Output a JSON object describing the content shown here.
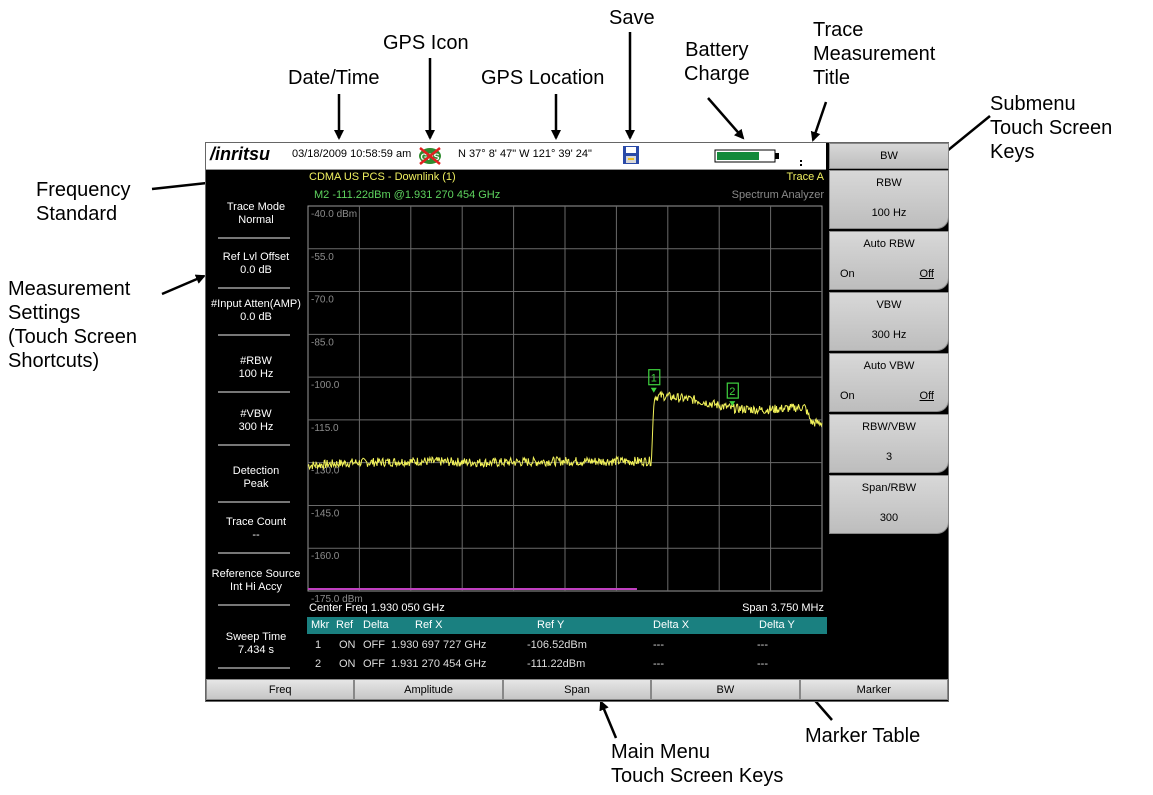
{
  "callouts": {
    "date_time": "Date/Time",
    "gps_icon": "GPS Icon",
    "gps_location": "GPS Location",
    "save": "Save",
    "battery": "Battery\nCharge",
    "trace_title": "Trace\nMeasurement\nTitle",
    "submenu": "Submenu\nTouch Screen\nKeys",
    "freq_standard": "Frequency\nStandard",
    "meas_settings": "Measurement\nSettings\n(Touch Screen\nShortcuts)",
    "marker_table": "Marker Table",
    "main_menu": "Main Menu\nTouch Screen Keys"
  },
  "status": {
    "logo": "/inritsu",
    "datetime": "03/18/2009 10:58:59 am",
    "gps_icon_label": "GPS",
    "gps_location": "N 37° 8' 47\" W 121° 39' 24\""
  },
  "header": {
    "standard": "CDMA US PCS - Downlink (1)",
    "trace": "Trace A",
    "marker_readout": "M2 -111.22dBm @1.931 270 454 GHz",
    "mode": "Spectrum Analyzer"
  },
  "left_panel": [
    {
      "label": "Trace Mode",
      "value": "Normal"
    },
    {
      "label": "Ref Lvl Offset",
      "value": "0.0 dB"
    },
    {
      "label": "#Input Atten(AMP)",
      "value": "0.0 dB"
    },
    {
      "label": "#RBW",
      "value": "100 Hz"
    },
    {
      "label": "#VBW",
      "value": "300 Hz"
    },
    {
      "label": "Detection",
      "value": "Peak"
    },
    {
      "label": "Trace Count",
      "value": "--"
    },
    {
      "label": "Reference Source",
      "value": "Int Hi Accy"
    },
    {
      "label": "Sweep Time",
      "value": "7.434 s"
    }
  ],
  "submenu": {
    "title": "BW",
    "keys": [
      {
        "label": "RBW",
        "value": "100 Hz"
      },
      {
        "label": "Auto RBW",
        "opt1": "On",
        "opt2": "Off"
      },
      {
        "label": "VBW",
        "value": "300 Hz"
      },
      {
        "label": "Auto VBW",
        "opt1": "On",
        "opt2": "Off"
      },
      {
        "label": "RBW/VBW",
        "value": "3"
      },
      {
        "label": "Span/RBW",
        "value": "300"
      }
    ]
  },
  "main_menu": [
    "Freq",
    "Amplitude",
    "Span",
    "BW",
    "Marker"
  ],
  "chart_data": {
    "type": "line",
    "y_tick_labels": [
      "-40.0 dBm",
      "-55.0",
      "-70.0",
      "-85.0",
      "-100.0",
      "-115.0",
      "-130.0",
      "-145.0",
      "-160.0",
      "-175.0 dBm"
    ],
    "ylim": [
      -175,
      -40
    ],
    "xlim": [
      1.928175,
      1.931925
    ],
    "xlabel_left": "Center Freq 1.930 050 GHz",
    "xlabel_right": "Span 3.750 MHz",
    "grid": true,
    "series": [
      {
        "x": [
          1.928175,
          1.9285,
          1.929,
          1.9295,
          1.93,
          1.9305,
          1.93068,
          1.9307,
          1.93075,
          1.931,
          1.93127,
          1.9315,
          1.9318,
          1.93185,
          1.931925
        ],
        "values": [
          -131,
          -130,
          -129.5,
          -130,
          -129.5,
          -129.5,
          -129.5,
          -107,
          -106.5,
          -108,
          -111,
          -111.5,
          -110.5,
          -116,
          -116
        ]
      }
    ],
    "markers": [
      {
        "label": "1",
        "x": 1.930697727,
        "y": -106.52
      },
      {
        "label": "2",
        "x": 1.931270454,
        "y": -111.22
      }
    ]
  },
  "marker_table": {
    "headers": [
      "Mkr",
      "Ref",
      "Delta",
      "Ref X",
      "Ref Y",
      "Delta X",
      "Delta Y"
    ],
    "rows": [
      [
        "1",
        "ON",
        "OFF",
        "1.930 697 727 GHz",
        "-106.52dBm",
        "---",
        "---"
      ],
      [
        "2",
        "ON",
        "OFF",
        "1.931 270 454 GHz",
        "-111.22dBm",
        "---",
        "---"
      ]
    ]
  }
}
